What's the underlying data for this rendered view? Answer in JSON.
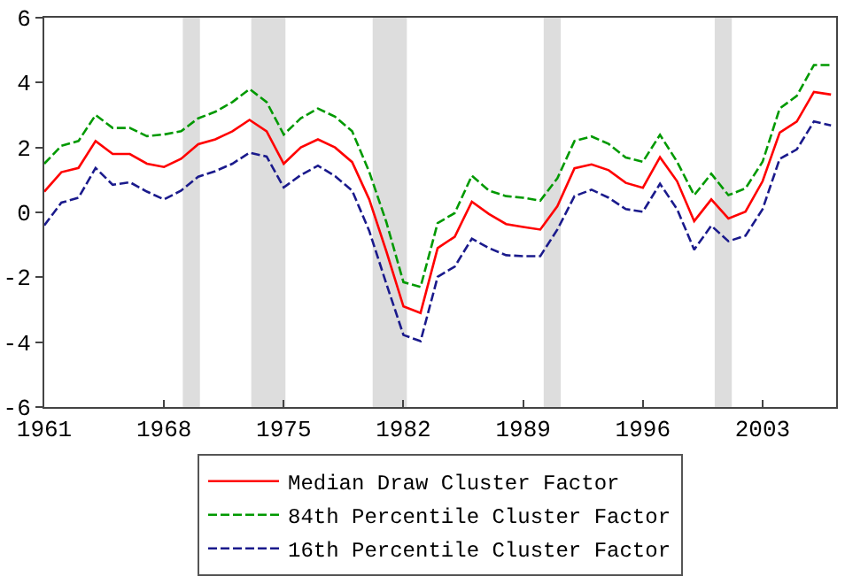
{
  "chart_data": {
    "type": "line",
    "x": [
      1961,
      1962,
      1963,
      1964,
      1965,
      1966,
      1967,
      1968,
      1969,
      1970,
      1971,
      1972,
      1973,
      1974,
      1975,
      1976,
      1977,
      1978,
      1979,
      1980,
      1981,
      1982,
      1983,
      1984,
      1985,
      1986,
      1987,
      1988,
      1989,
      1990,
      1991,
      1992,
      1993,
      1994,
      1995,
      1996,
      1997,
      1998,
      1999,
      2000,
      2001,
      2002,
      2003,
      2004,
      2005,
      2006,
      2007
    ],
    "series": [
      {
        "name": "Median Draw Cluster Factor",
        "color": "#ff0000",
        "line_style": "solid",
        "values": [
          0.64,
          1.24,
          1.37,
          2.2,
          1.8,
          1.8,
          1.5,
          1.4,
          1.65,
          2.1,
          2.25,
          2.5,
          2.85,
          2.5,
          1.5,
          2.0,
          2.25,
          2.0,
          1.55,
          0.4,
          -1.2,
          -2.9,
          -3.1,
          -1.1,
          -0.75,
          0.33,
          -0.05,
          -0.36,
          -0.45,
          -0.53,
          0.19,
          1.36,
          1.48,
          1.3,
          0.91,
          0.76,
          1.7,
          0.96,
          -0.27,
          0.4,
          -0.19,
          0.02,
          0.96,
          2.46,
          2.8,
          3.71,
          3.63
        ]
      },
      {
        "name": "84th Percentile Cluster Factor",
        "color": "#009900",
        "line_style": "dashed",
        "values": [
          1.5,
          2.05,
          2.2,
          3.0,
          2.6,
          2.6,
          2.35,
          2.4,
          2.5,
          2.9,
          3.1,
          3.4,
          3.8,
          3.4,
          2.4,
          2.9,
          3.2,
          2.95,
          2.5,
          1.25,
          -0.3,
          -2.15,
          -2.3,
          -0.33,
          -0.02,
          1.13,
          0.67,
          0.5,
          0.45,
          0.36,
          1.05,
          2.2,
          2.34,
          2.11,
          1.69,
          1.56,
          2.39,
          1.56,
          0.53,
          1.19,
          0.53,
          0.74,
          1.56,
          3.2,
          3.59,
          4.54,
          4.54
        ]
      },
      {
        "name": "16th Percentile Cluster Factor",
        "color": "#1a1a8c",
        "line_style": "dashed",
        "values": [
          -0.4,
          0.3,
          0.45,
          1.37,
          0.85,
          0.93,
          0.64,
          0.4,
          0.67,
          1.1,
          1.27,
          1.5,
          1.84,
          1.72,
          0.77,
          1.15,
          1.44,
          1.12,
          0.67,
          -0.57,
          -2.2,
          -3.78,
          -3.97,
          -1.99,
          -1.67,
          -0.81,
          -1.1,
          -1.32,
          -1.35,
          -1.35,
          -0.53,
          0.5,
          0.7,
          0.45,
          0.1,
          0.02,
          0.88,
          0.1,
          -1.15,
          -0.41,
          -0.89,
          -0.72,
          0.1,
          1.65,
          1.94,
          2.8,
          2.68
        ]
      }
    ],
    "bands": [
      {
        "axis": "x",
        "from": 1969.1,
        "to": 1970.1,
        "color": "#dddddd"
      },
      {
        "axis": "x",
        "from": 1973.1,
        "to": 1975.1,
        "color": "#dddddd"
      },
      {
        "axis": "x",
        "from": 1980.2,
        "to": 1982.2,
        "color": "#dddddd"
      },
      {
        "axis": "x",
        "from": 1990.2,
        "to": 1991.2,
        "color": "#dddddd"
      },
      {
        "axis": "x",
        "from": 2000.2,
        "to": 2001.2,
        "color": "#dddddd"
      }
    ],
    "xlim": [
      1961,
      2007.3
    ],
    "xticks": [
      1961,
      1968,
      1975,
      1982,
      1989,
      1996,
      2003
    ],
    "ylim": [
      -6,
      6
    ],
    "yticks": [
      -6,
      -4,
      -2,
      0,
      2,
      4,
      6
    ],
    "grid": false,
    "legend": "bottom",
    "marker": "none"
  }
}
